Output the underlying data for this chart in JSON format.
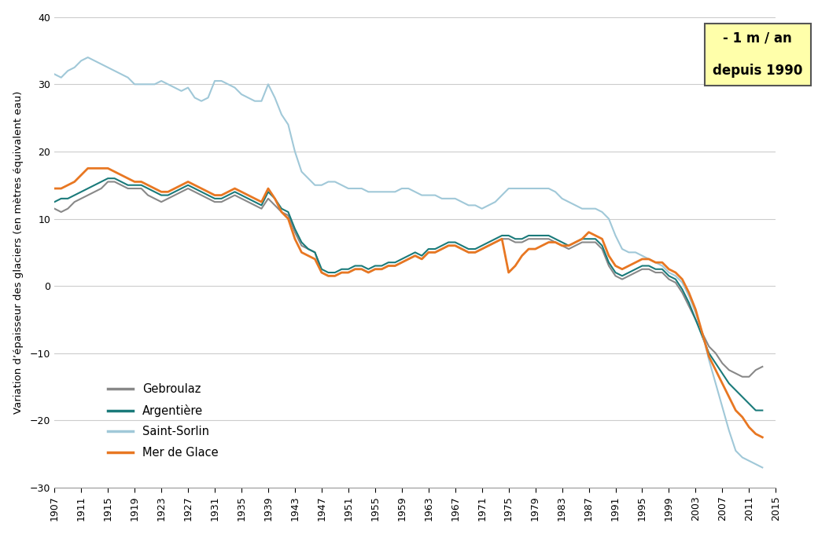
{
  "ylabel": "Variation d’épaisseur des glaciers (en mètres équivalent eau)",
  "xlim": [
    1907,
    2015
  ],
  "ylim": [
    -30,
    40
  ],
  "yticks": [
    -30,
    -20,
    -10,
    0,
    10,
    20,
    30,
    40
  ],
  "xtick_years": [
    1907,
    1911,
    1915,
    1919,
    1923,
    1927,
    1931,
    1935,
    1939,
    1943,
    1947,
    1951,
    1955,
    1959,
    1963,
    1967,
    1971,
    1975,
    1979,
    1983,
    1987,
    1991,
    1995,
    1999,
    2003,
    2007,
    2011,
    2015
  ],
  "annotation_line1": "- 1 m / an",
  "annotation_line2": "depuis 1990",
  "annotation_bg": "#ffffaa",
  "colors": {
    "Gebroulaz": "#888888",
    "Argentiere": "#1a7a7a",
    "Saint-Sorlin": "#a0c8d8",
    "Mer de Glace": "#e87722"
  },
  "gebroulaz_x": [
    1907,
    1908,
    1909,
    1910,
    1911,
    1912,
    1913,
    1914,
    1915,
    1916,
    1917,
    1918,
    1919,
    1920,
    1921,
    1922,
    1923,
    1924,
    1925,
    1926,
    1927,
    1928,
    1929,
    1930,
    1931,
    1932,
    1933,
    1934,
    1935,
    1936,
    1937,
    1938,
    1939,
    1940,
    1941,
    1942,
    1943,
    1944,
    1945,
    1946,
    1947,
    1948,
    1949,
    1950,
    1951,
    1952,
    1953,
    1954,
    1955,
    1956,
    1957,
    1958,
    1959,
    1960,
    1961,
    1962,
    1963,
    1964,
    1965,
    1966,
    1967,
    1968,
    1969,
    1970,
    1971,
    1972,
    1973,
    1974,
    1975,
    1976,
    1977,
    1978,
    1979,
    1980,
    1981,
    1982,
    1983,
    1984,
    1985,
    1986,
    1987,
    1988,
    1989,
    1990,
    1991,
    1992,
    1993,
    1994,
    1995,
    1996,
    1997,
    1998,
    1999,
    2000,
    2001,
    2002,
    2003,
    2004,
    2005,
    2006,
    2007,
    2008,
    2009,
    2010,
    2011,
    2012,
    2013
  ],
  "gebroulaz_y": [
    11.5,
    11.0,
    11.5,
    12.5,
    13.0,
    13.5,
    14.0,
    14.5,
    15.5,
    15.5,
    15.0,
    14.5,
    14.5,
    14.5,
    13.5,
    13.0,
    12.5,
    13.0,
    13.5,
    14.0,
    14.5,
    14.0,
    13.5,
    13.0,
    12.5,
    12.5,
    13.0,
    13.5,
    13.0,
    12.5,
    12.0,
    11.5,
    13.0,
    12.0,
    11.0,
    10.5,
    8.0,
    6.0,
    5.5,
    5.0,
    2.0,
    1.5,
    1.5,
    2.0,
    2.0,
    2.5,
    2.5,
    2.0,
    2.5,
    2.5,
    3.0,
    3.0,
    3.5,
    4.0,
    4.5,
    4.0,
    5.0,
    5.0,
    5.5,
    6.0,
    6.0,
    5.5,
    5.0,
    5.0,
    5.5,
    6.0,
    6.5,
    7.0,
    7.0,
    6.5,
    6.5,
    7.0,
    7.0,
    7.0,
    7.0,
    6.5,
    6.0,
    5.5,
    6.0,
    6.5,
    6.5,
    6.5,
    5.5,
    3.0,
    1.5,
    1.0,
    1.5,
    2.0,
    2.5,
    2.5,
    2.0,
    2.0,
    1.0,
    0.5,
    -1.0,
    -3.0,
    -5.0,
    -7.0,
    -9.0,
    -10.0,
    -11.5,
    -12.5,
    -13.0,
    -13.5,
    -13.5,
    -12.5,
    -12.0
  ],
  "argentiere_x": [
    1907,
    1908,
    1909,
    1910,
    1911,
    1912,
    1913,
    1914,
    1915,
    1916,
    1917,
    1918,
    1919,
    1920,
    1921,
    1922,
    1923,
    1924,
    1925,
    1926,
    1927,
    1928,
    1929,
    1930,
    1931,
    1932,
    1933,
    1934,
    1935,
    1936,
    1937,
    1938,
    1939,
    1940,
    1941,
    1942,
    1943,
    1944,
    1945,
    1946,
    1947,
    1948,
    1949,
    1950,
    1951,
    1952,
    1953,
    1954,
    1955,
    1956,
    1957,
    1958,
    1959,
    1960,
    1961,
    1962,
    1963,
    1964,
    1965,
    1966,
    1967,
    1968,
    1969,
    1970,
    1971,
    1972,
    1973,
    1974,
    1975,
    1976,
    1977,
    1978,
    1979,
    1980,
    1981,
    1982,
    1983,
    1984,
    1985,
    1986,
    1987,
    1988,
    1989,
    1990,
    1991,
    1992,
    1993,
    1994,
    1995,
    1996,
    1997,
    1998,
    1999,
    2000,
    2001,
    2002,
    2003,
    2004,
    2005,
    2006,
    2007,
    2008,
    2009,
    2010,
    2011,
    2012,
    2013
  ],
  "argentiere_y": [
    12.5,
    13.0,
    13.0,
    13.5,
    14.0,
    14.5,
    15.0,
    15.5,
    16.0,
    16.0,
    15.5,
    15.0,
    15.0,
    15.0,
    14.5,
    14.0,
    13.5,
    13.5,
    14.0,
    14.5,
    15.0,
    14.5,
    14.0,
    13.5,
    13.0,
    13.0,
    13.5,
    14.0,
    13.5,
    13.0,
    12.5,
    12.0,
    14.0,
    13.0,
    11.5,
    11.0,
    8.5,
    6.5,
    5.5,
    5.0,
    2.5,
    2.0,
    2.0,
    2.5,
    2.5,
    3.0,
    3.0,
    2.5,
    3.0,
    3.0,
    3.5,
    3.5,
    4.0,
    4.5,
    5.0,
    4.5,
    5.5,
    5.5,
    6.0,
    6.5,
    6.5,
    6.0,
    5.5,
    5.5,
    6.0,
    6.5,
    7.0,
    7.5,
    7.5,
    7.0,
    7.0,
    7.5,
    7.5,
    7.5,
    7.5,
    7.0,
    6.5,
    6.0,
    6.5,
    7.0,
    7.0,
    7.0,
    6.0,
    3.5,
    2.0,
    1.5,
    2.0,
    2.5,
    3.0,
    3.0,
    2.5,
    2.5,
    1.5,
    1.0,
    -0.5,
    -2.5,
    -5.0,
    -7.5,
    -10.0,
    -11.5,
    -13.0,
    -14.5,
    -15.5,
    -16.5,
    -17.5,
    -18.5,
    -18.5
  ],
  "saint_sorlin_x": [
    1907,
    1908,
    1909,
    1910,
    1911,
    1912,
    1913,
    1914,
    1915,
    1916,
    1917,
    1918,
    1919,
    1920,
    1921,
    1922,
    1923,
    1924,
    1925,
    1926,
    1927,
    1928,
    1929,
    1930,
    1931,
    1932,
    1933,
    1934,
    1935,
    1936,
    1937,
    1938,
    1939,
    1940,
    1941,
    1942,
    1943,
    1944,
    1945,
    1946,
    1947,
    1948,
    1949,
    1950,
    1951,
    1952,
    1953,
    1954,
    1955,
    1956,
    1957,
    1958,
    1959,
    1960,
    1961,
    1962,
    1963,
    1964,
    1965,
    1966,
    1967,
    1968,
    1969,
    1970,
    1971,
    1972,
    1973,
    1974,
    1975,
    1976,
    1977,
    1978,
    1979,
    1980,
    1981,
    1982,
    1983,
    1984,
    1985,
    1986,
    1987,
    1988,
    1989,
    1990,
    1991,
    1992,
    1993,
    1994,
    1995,
    1996,
    1997,
    1998,
    1999,
    2000,
    2001,
    2002,
    2003,
    2004,
    2005,
    2006,
    2007,
    2008,
    2009,
    2010,
    2011,
    2012,
    2013
  ],
  "saint_sorlin_y": [
    31.5,
    31.0,
    32.0,
    32.5,
    33.5,
    34.0,
    33.5,
    33.0,
    32.5,
    32.0,
    31.5,
    31.0,
    30.0,
    30.0,
    30.0,
    30.0,
    30.5,
    30.0,
    29.5,
    29.0,
    29.5,
    28.0,
    27.5,
    28.0,
    30.5,
    30.5,
    30.0,
    29.5,
    28.5,
    28.0,
    27.5,
    27.5,
    30.0,
    28.0,
    25.5,
    24.0,
    20.0,
    17.0,
    16.0,
    15.0,
    15.0,
    15.5,
    15.5,
    15.0,
    14.5,
    14.5,
    14.5,
    14.0,
    14.0,
    14.0,
    14.0,
    14.0,
    14.5,
    14.5,
    14.0,
    13.5,
    13.5,
    13.5,
    13.0,
    13.0,
    13.0,
    12.5,
    12.0,
    12.0,
    11.5,
    12.0,
    12.5,
    13.5,
    14.5,
    14.5,
    14.5,
    14.5,
    14.5,
    14.5,
    14.5,
    14.0,
    13.0,
    12.5,
    12.0,
    11.5,
    11.5,
    11.5,
    11.0,
    10.0,
    7.5,
    5.5,
    5.0,
    5.0,
    4.5,
    4.0,
    3.5,
    3.0,
    2.0,
    1.5,
    0.5,
    -1.5,
    -4.0,
    -7.0,
    -11.0,
    -14.5,
    -18.0,
    -21.5,
    -24.5,
    -25.5,
    -26.0,
    -26.5,
    -27.0
  ],
  "mer_de_glace_x": [
    1907,
    1908,
    1909,
    1910,
    1911,
    1912,
    1913,
    1914,
    1915,
    1916,
    1917,
    1918,
    1919,
    1920,
    1921,
    1922,
    1923,
    1924,
    1925,
    1926,
    1927,
    1928,
    1929,
    1930,
    1931,
    1932,
    1933,
    1934,
    1935,
    1936,
    1937,
    1938,
    1939,
    1940,
    1941,
    1942,
    1943,
    1944,
    1945,
    1946,
    1947,
    1948,
    1949,
    1950,
    1951,
    1952,
    1953,
    1954,
    1955,
    1956,
    1957,
    1958,
    1959,
    1960,
    1961,
    1962,
    1963,
    1964,
    1965,
    1966,
    1967,
    1968,
    1969,
    1970,
    1971,
    1972,
    1973,
    1974,
    1975,
    1976,
    1977,
    1978,
    1979,
    1980,
    1981,
    1982,
    1983,
    1984,
    1985,
    1986,
    1987,
    1988,
    1989,
    1990,
    1991,
    1992,
    1993,
    1994,
    1995,
    1996,
    1997,
    1998,
    1999,
    2000,
    2001,
    2002,
    2003,
    2004,
    2005,
    2006,
    2007,
    2008,
    2009,
    2010,
    2011,
    2012,
    2013
  ],
  "mer_de_glace_y": [
    14.5,
    14.5,
    15.0,
    15.5,
    16.5,
    17.5,
    17.5,
    17.5,
    17.5,
    17.0,
    16.5,
    16.0,
    15.5,
    15.5,
    15.0,
    14.5,
    14.0,
    14.0,
    14.5,
    15.0,
    15.5,
    15.0,
    14.5,
    14.0,
    13.5,
    13.5,
    14.0,
    14.5,
    14.0,
    13.5,
    13.0,
    12.5,
    14.5,
    13.0,
    11.0,
    10.0,
    7.0,
    5.0,
    4.5,
    4.0,
    2.0,
    1.5,
    1.5,
    2.0,
    2.0,
    2.5,
    2.5,
    2.0,
    2.5,
    2.5,
    3.0,
    3.0,
    3.5,
    4.0,
    4.5,
    4.0,
    5.0,
    5.0,
    5.5,
    6.0,
    6.0,
    5.5,
    5.0,
    5.0,
    5.5,
    6.0,
    6.5,
    7.0,
    2.0,
    3.0,
    4.5,
    5.5,
    5.5,
    6.0,
    6.5,
    6.5,
    6.0,
    6.0,
    6.5,
    7.0,
    8.0,
    7.5,
    7.0,
    4.5,
    3.0,
    2.5,
    3.0,
    3.5,
    4.0,
    4.0,
    3.5,
    3.5,
    2.5,
    2.0,
    1.0,
    -1.0,
    -3.5,
    -7.0,
    -10.5,
    -12.5,
    -14.5,
    -16.5,
    -18.5,
    -19.5,
    -21.0,
    -22.0,
    -22.5
  ]
}
